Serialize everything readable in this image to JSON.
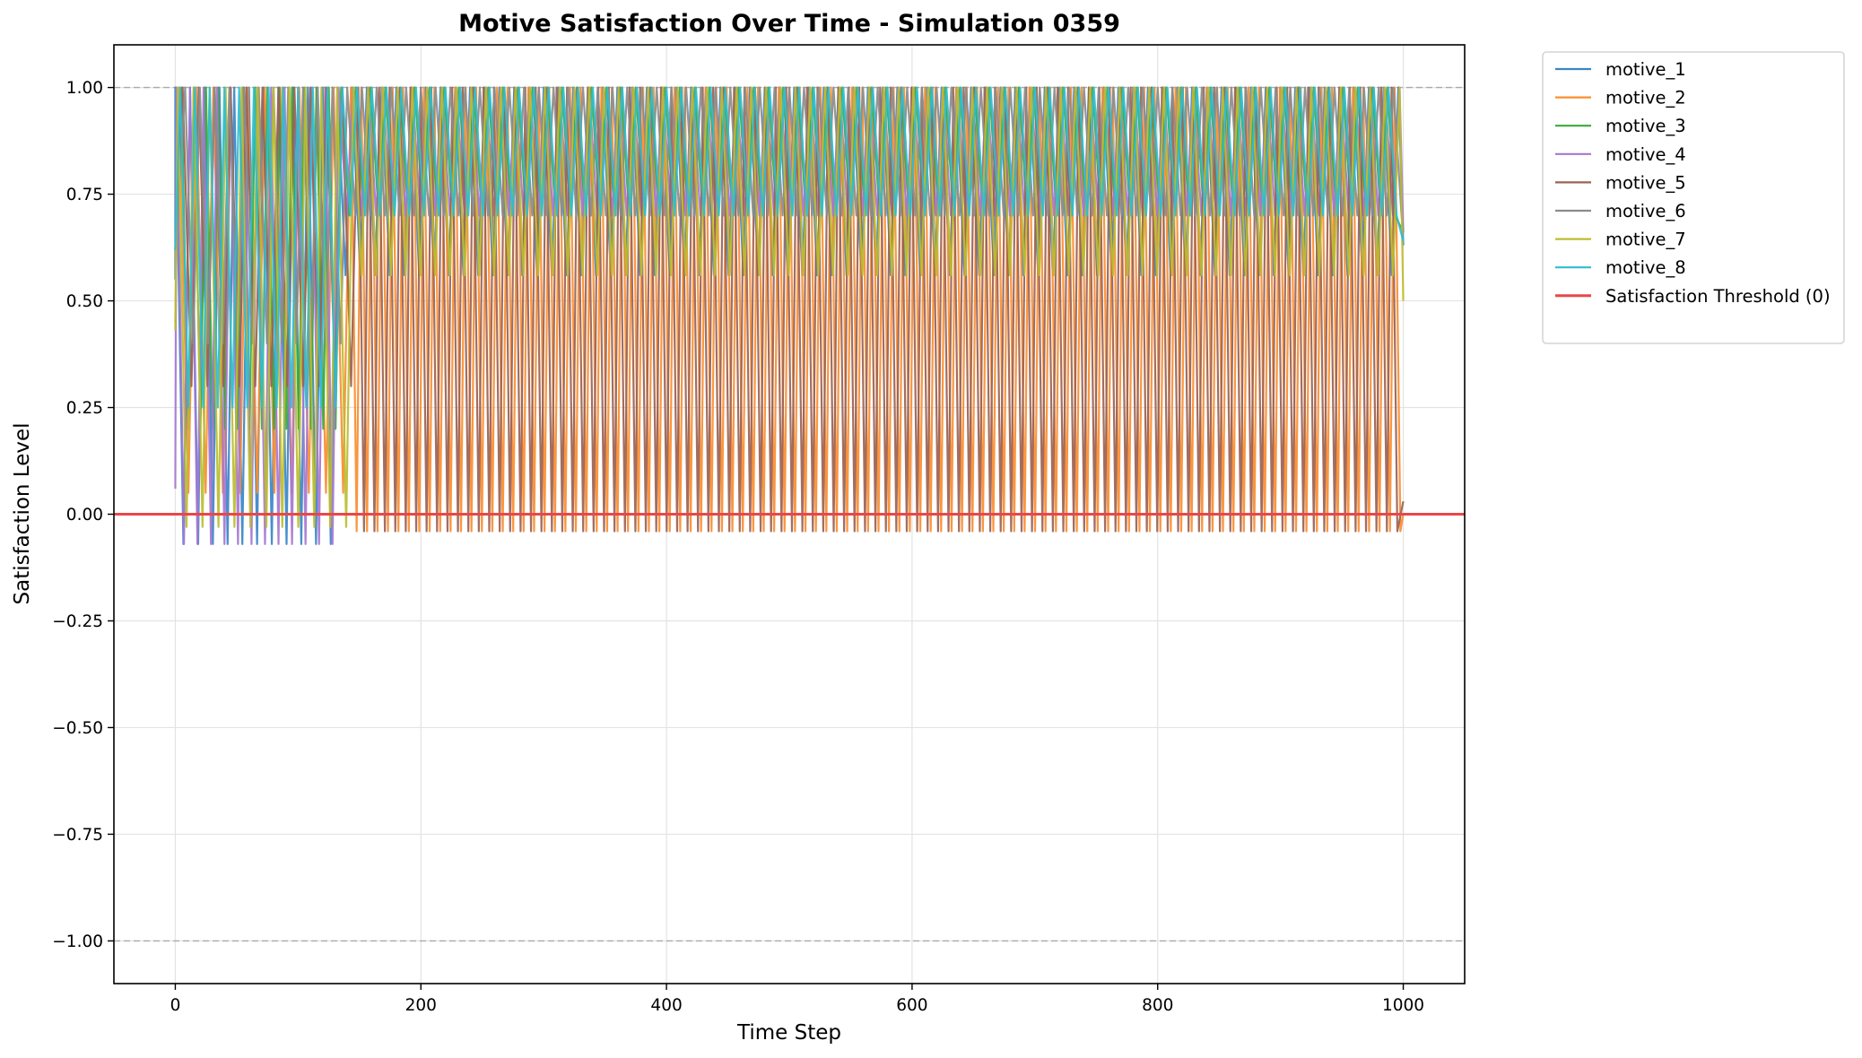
{
  "chart_data": {
    "type": "line",
    "title": "Motive Satisfaction Over Time - Simulation 0359",
    "xlabel": "Time Step",
    "ylabel": "Satisfaction Level",
    "xlim": [
      -50,
      1050
    ],
    "ylim": [
      -1.1,
      1.1
    ],
    "xticks": [
      0,
      200,
      400,
      600,
      800,
      1000
    ],
    "xtick_labels": [
      "0",
      "200",
      "400",
      "600",
      "800",
      "1000"
    ],
    "yticks": [
      -1.0,
      -0.75,
      -0.5,
      -0.25,
      0.0,
      0.25,
      0.5,
      0.75,
      1.0
    ],
    "ytick_labels": [
      "−1.00",
      "−0.75",
      "−0.50",
      "−0.25",
      "0.00",
      "0.25",
      "0.50",
      "0.75",
      "1.00"
    ],
    "grid": true,
    "legend_position": "outside right, top",
    "reference_lines": [
      {
        "y": 1.0,
        "style": "dashed",
        "color": "#aaaaaa"
      },
      {
        "y": -1.0,
        "style": "dashed",
        "color": "#aaaaaa"
      }
    ],
    "threshold": {
      "name": "Satisfaction Threshold (0)",
      "y": 0.0,
      "color": "#e8474a"
    },
    "series": [
      {
        "name": "motive_1",
        "color": "#3a86c8",
        "start": 0.55,
        "early_period": 12,
        "early_min": -0.07,
        "late_period": 12,
        "late_min": 0.56,
        "switch": 130,
        "phase": 0,
        "end": 0.63
      },
      {
        "name": "motive_2",
        "color": "#fb8d2f",
        "start": 0.45,
        "early_period": 14,
        "early_min": 0.05,
        "late_period": 8.5,
        "late_min": -0.04,
        "switch": 140,
        "phase": 3,
        "end": 0.0
      },
      {
        "name": "motive_3",
        "color": "#3aaa3a",
        "start": 0.62,
        "early_period": 10,
        "early_min": 0.2,
        "late_period": 12,
        "late_min": 0.7,
        "switch": 130,
        "phase": 5,
        "end": 0.66
      },
      {
        "name": "motive_4",
        "color": "#a577d0",
        "start": 0.06,
        "early_period": 11,
        "early_min": -0.07,
        "late_period": 12,
        "late_min": 0.7,
        "switch": 130,
        "phase": 1,
        "end": 0.66
      },
      {
        "name": "motive_5",
        "color": "#9b6254",
        "start": 0.62,
        "early_period": 13,
        "early_min": 0.3,
        "late_period": 8.5,
        "late_min": -0.04,
        "switch": 140,
        "phase": 6,
        "end": 0.03
      },
      {
        "name": "motive_6",
        "color": "#8c8c8c",
        "start": 0.6,
        "early_period": 12,
        "early_min": 0.4,
        "late_period": 12,
        "late_min": 0.7,
        "switch": 130,
        "phase": 8,
        "end": 0.66
      },
      {
        "name": "motive_7",
        "color": "#bcbd2f",
        "start": 0.43,
        "early_period": 13,
        "early_min": -0.03,
        "late_period": 12,
        "late_min": 0.56,
        "switch": 140,
        "phase": 2,
        "end": 0.5
      },
      {
        "name": "motive_8",
        "color": "#2fbecf",
        "start": 0.62,
        "early_period": 12,
        "early_min": 0.25,
        "late_period": 12,
        "late_min": 0.7,
        "switch": 130,
        "phase": 4,
        "end": 0.64
      }
    ]
  }
}
